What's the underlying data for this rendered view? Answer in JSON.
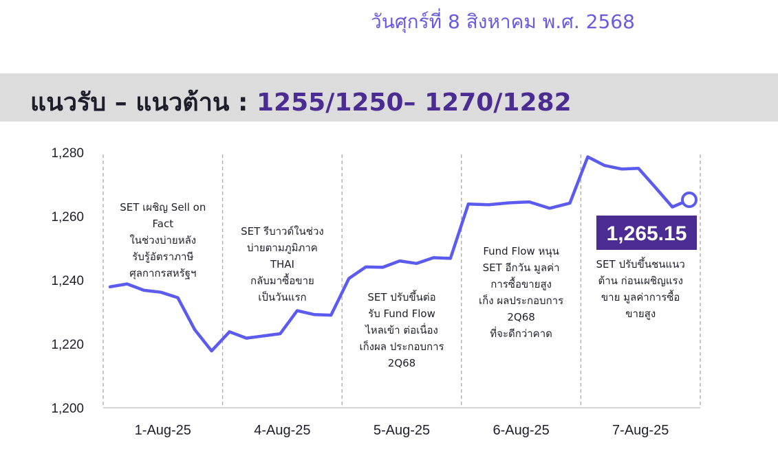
{
  "header": {
    "date": "วันศุกร์ที่ 8 สิงหาคม พ.ศ. 2568",
    "level_label": "แนวรับ – แนวต้าน :",
    "level_values": "1255/1250– 1270/1282"
  },
  "colors": {
    "line": "#5b5bef",
    "accent": "#4b2c92",
    "band": "#dcdcdc",
    "date_text": "#6a5ae0"
  },
  "chart_data": {
    "type": "line",
    "title": "",
    "xlabel": "",
    "ylabel": "",
    "ylim": [
      1200,
      1280
    ],
    "yticks": [
      1200,
      1220,
      1240,
      1260,
      1280
    ],
    "ytick_labels": [
      "1,200",
      "1,220",
      "1,240",
      "1,260",
      "1,280"
    ],
    "categories": [
      "1-Aug-25",
      "4-Aug-25",
      "5-Aug-25",
      "6-Aug-25",
      "7-Aug-25"
    ],
    "grid": "dashed vertical separators between days",
    "series": [
      {
        "name": "",
        "values": [
          [
            1237.9,
            1238.8,
            1236.8,
            1236.2,
            1234.5,
            1224.5,
            1217.8
          ],
          [
            1223.8,
            1221.8,
            1222.5,
            1223.2,
            1230.4,
            1229.2,
            1229.0
          ],
          [
            1240.5,
            1244.1,
            1244.0,
            1246.0,
            1245.2,
            1247.0,
            1246.8
          ],
          [
            1263.8,
            1263.6,
            1264.2,
            1264.5,
            1262.5,
            1264.1
          ],
          [
            1278.6,
            1275.9,
            1274.8,
            1275.0,
            1269.0,
            1262.9,
            1265.15
          ]
        ]
      }
    ],
    "last_value_label": "1,265.15",
    "annotations": [
      "SET เผชิญ Sell on Fact ในช่วงบ่ายหลัง รับรู้อัตราภาษี ศุลกากรสหรัฐฯ",
      "SET รีบาวด์ในช่วง บ่ายตามภูมิภาค THAI กลับมาซื้อขาย เป็นวันแรก",
      "SET ปรับขึ้นต่อ รับ Fund Flow ไหลเข้า ต่อเนื่อง เก็งผล ประกอบการ 2Q68",
      "Fund Flow หนุน SET อีกวัน มูลค่า การซื้อขายสูง เก็ง ผลประกอบการ 2Q68 ที่จะดีกว่าคาด",
      "SET ปรับขึ้นชนแนว ต้าน ก่อนเผชิญแรง ขาย มูลค่าการซื้อ ขายสูง"
    ]
  }
}
